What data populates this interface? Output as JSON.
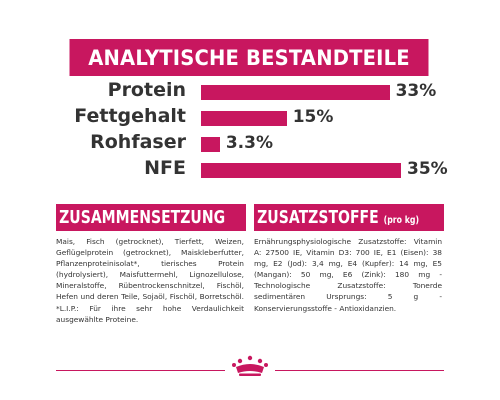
{
  "banner": {
    "title": "ANALYTISCHE BESTANDTEILE"
  },
  "analysis": [
    {
      "label": "Protein",
      "value_text": "33%",
      "value": 33
    },
    {
      "label": "Fettgehalt",
      "value_text": "15%",
      "value": 15
    },
    {
      "label": "Rohfaser",
      "value_text": "3.3%",
      "value": 3.3
    },
    {
      "label": "NFE",
      "value_text": "35%",
      "value": 35
    }
  ],
  "composition": {
    "title": "ZUSAMMENSETZUNG",
    "text": "Mais, Fisch (getrocknet), Tierfett, Weizen, Geflügelprotein (getrocknet), Maiskleberfutter, Pflanzenproteinisolat*, tierisches Protein (hydrolysiert), Maisfuttermehl, Lignozellulose, Mineralstoffe, Rübentrockenschnitzel, Fischöl, Hefen und deren Teile, Sojaöl, Fischöl, Borretschöl. *L.I.P.: Für ihre sehr hohe Verdaulichkeit ausgewählte Proteine."
  },
  "additives": {
    "title": "ZUSATZSTOFFE",
    "unit": "(pro kg)",
    "text": "Ernährungsphysiologische Zusatzstoffe: Vitamin A: 27500 IE, Vitamin D3: 700 IE, E1 (Eisen): 38 mg, E2 (Jod): 3,4 mg, E4 (Kupfer): 14 mg, E5 (Mangan): 50 mg, E6 (Zink): 180 mg - Technologische Zusatzstoffe: Tonerde sedimentären Ursprungs: 5 g - Konservierungsstoffe - Antioxidanzien."
  },
  "colors": {
    "accent": "#c8175f",
    "text": "#333333"
  },
  "logo": {
    "icon": "crown-icon"
  }
}
